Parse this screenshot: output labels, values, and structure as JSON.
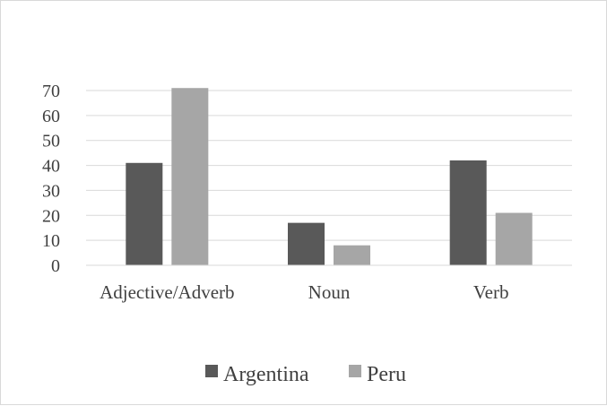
{
  "chart_data": {
    "type": "bar",
    "categories": [
      "Adjective/Adverb",
      "Noun",
      "Verb"
    ],
    "series": [
      {
        "name": "Argentina",
        "values": [
          41,
          17,
          42
        ],
        "color": "#595959"
      },
      {
        "name": "Peru",
        "values": [
          71,
          8,
          21
        ],
        "color": "#a6a6a6"
      }
    ],
    "yticks": [
      "0",
      "10",
      "20",
      "30",
      "40",
      "50",
      "60",
      "70"
    ],
    "ylim": [
      0,
      70
    ],
    "grid": true,
    "legend": "bottom",
    "title": "",
    "xlabel": "",
    "ylabel": ""
  }
}
